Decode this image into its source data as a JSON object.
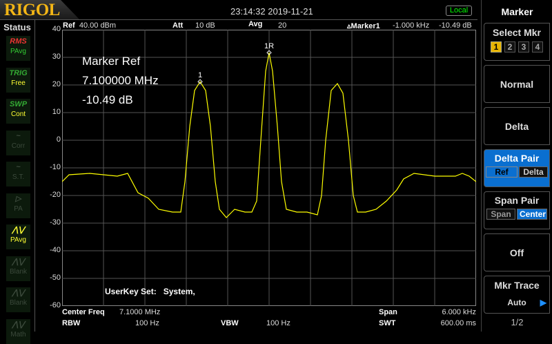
{
  "brand": "RIGOL",
  "datetime": "23:14:32 2019-11-21",
  "local_badge": "Local",
  "status": {
    "title": "Status",
    "items": [
      {
        "top": "RMS",
        "label": "PAvg",
        "active": true,
        "color": "#3c3"
      },
      {
        "top": "TRIG",
        "label": "Free",
        "active": true,
        "color": "#ff3"
      },
      {
        "top": "SWP",
        "label": "Cont",
        "active": true,
        "color": "#ff3"
      },
      {
        "top": "~",
        "label": "Corr",
        "active": false
      },
      {
        "top": "~",
        "label": "S.T.",
        "active": false
      },
      {
        "top": "▷",
        "label": "PA",
        "active": false
      },
      {
        "top": "⋀⋁",
        "label": "PAvg",
        "active": true,
        "color": "#ff3"
      },
      {
        "top": "⋀⋁",
        "label": "Blank",
        "active": false
      },
      {
        "top": "⋀⋁",
        "label": "Blank",
        "active": false
      },
      {
        "top": "⋀⋁",
        "label": "Math",
        "active": false
      }
    ]
  },
  "header": {
    "ref_label": "Ref",
    "ref_value": "40.00 dBm",
    "att_label": "Att",
    "att_value": "10 dB",
    "avg_label": "Avg",
    "avg_value": "20",
    "marker_label": "Marker1",
    "marker_freq": "-1.000 kHz",
    "marker_amp": "-10.49 dB"
  },
  "marker_readout": {
    "line1": "Marker Ref",
    "line2": "7.100000 MHz",
    "line3": "-10.49 dB"
  },
  "userkey": {
    "label": "UserKey Set:",
    "value": "System,"
  },
  "footer": {
    "center_label": "Center Freq",
    "center_value": "7.1000 MHz",
    "span_label": "Span",
    "span_value": "6.000 kHz",
    "rbw_label": "RBW",
    "rbw_value": "100 Hz",
    "vbw_label": "VBW",
    "vbw_value": "100 Hz",
    "swt_label": "SWT",
    "swt_value": "600.00 ms"
  },
  "menu": {
    "title": "Marker",
    "select_label": "Select Mkr",
    "select_options": [
      "1",
      "2",
      "3",
      "4"
    ],
    "selected": "1",
    "normal": "Normal",
    "delta": "Delta",
    "delta_pair": "Delta Pair",
    "ref": "Ref",
    "delta_sub": "Delta",
    "span_pair": "Span Pair",
    "span": "Span",
    "center": "Center",
    "off": "Off",
    "mkr_trace": "Mkr Trace",
    "auto": "Auto",
    "page": "1/2"
  },
  "chart_data": {
    "type": "line",
    "y_ticks": [
      "40",
      "30",
      "20",
      "10",
      "0",
      "-10",
      "-20",
      "-30",
      "-40",
      "-50",
      "-60"
    ],
    "ylim": [
      -60,
      40
    ],
    "xlim_mhz": [
      7.097,
      7.103
    ],
    "grid": true,
    "trace_color": "#ffff00",
    "markers": [
      {
        "label": "1",
        "x": 7.099,
        "y": 21.2
      },
      {
        "label": "1R",
        "x": 7.1,
        "y": 31.7
      }
    ],
    "x": [
      7.097,
      7.0971,
      7.0974,
      7.0978,
      7.09795,
      7.0981,
      7.09825,
      7.0984,
      7.0986,
      7.09872,
      7.09878,
      7.09885,
      7.09892,
      7.099,
      7.09908,
      7.09915,
      7.09922,
      7.09928,
      7.09938,
      7.0995,
      7.09965,
      7.09975,
      7.09982,
      7.09988,
      7.09995,
      7.1,
      7.10005,
      7.10012,
      7.10018,
      7.10025,
      7.1004,
      7.10055,
      7.1007,
      7.10076,
      7.10082,
      7.1009,
      7.10099,
      7.10107,
      7.10115,
      7.10122,
      7.10128,
      7.1014,
      7.10155,
      7.1017,
      7.10185,
      7.10195,
      7.1021,
      7.1024,
      7.1027,
      7.1028,
      7.1029,
      7.103
    ],
    "y": [
      -15,
      -12.5,
      -12,
      -13,
      -12,
      -19,
      -21,
      -25,
      -26,
      -26,
      -15,
      5,
      18,
      21.2,
      18,
      5,
      -15,
      -25,
      -28,
      -25,
      -26,
      -26,
      -22,
      0,
      25,
      31.7,
      25,
      5,
      -15,
      -25,
      -26,
      -26,
      -27,
      -20,
      0,
      18,
      20.5,
      17,
      0,
      -20,
      -26,
      -26,
      -25,
      -22,
      -18,
      -14,
      -12,
      -13,
      -13,
      -12,
      -13,
      -15
    ]
  }
}
